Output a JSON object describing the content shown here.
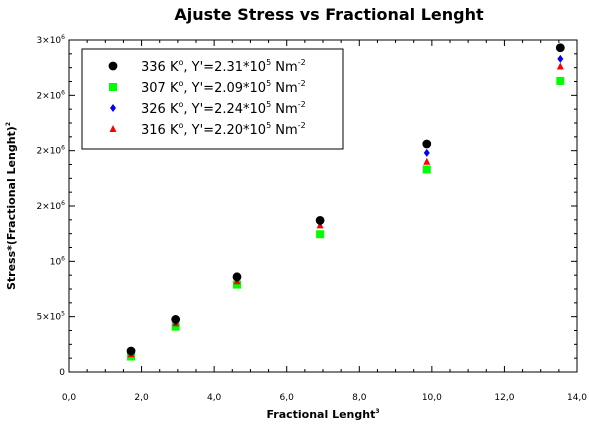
{
  "chart_data": {
    "type": "scatter",
    "title": "Ajuste Stress vs Fractional Lenght",
    "xlabel": "Fractional Lenght",
    "xlabel_sup": "3",
    "ylabel": "Stress*(Fractional Lenght)",
    "ylabel_sup": "2",
    "xlim": [
      0,
      14
    ],
    "ylim": [
      0,
      3000000
    ],
    "x_ticks": [
      "0,0",
      "2,0",
      "4,0",
      "6,0",
      "8,0",
      "10,0",
      "12,0",
      "14,0"
    ],
    "y_ticks": [
      {
        "base": "0",
        "exp": ""
      },
      {
        "base": "5×10",
        "exp": "5"
      },
      {
        "base": "10",
        "exp": "6"
      },
      {
        "base": "2×10",
        "exp": "6"
      },
      {
        "base": "2×10",
        "exp": "6"
      },
      {
        "base": "2×10",
        "exp": "6"
      },
      {
        "base": "3×10",
        "exp": "6"
      }
    ],
    "grid": false,
    "legend_position": "top-left",
    "series": [
      {
        "legend": {
          "a": "336 K",
          "b": "o",
          "c": ", Y'=2.31*10",
          "d": "5",
          "e": " Nm",
          "f": "-2"
        },
        "color": "#000000",
        "marker": "circle",
        "x": [
          1.71,
          2.94,
          4.63,
          6.92,
          9.86,
          13.54
        ],
        "y": [
          190000,
          475000,
          860000,
          1370000,
          2060000,
          2930000
        ]
      },
      {
        "legend": {
          "a": "307 K",
          "b": "o",
          "c": ", Y'=2.09*10",
          "d": "5",
          "e": " Nm",
          "f": "-2"
        },
        "color": "#00ff00",
        "marker": "square",
        "x": [
          1.71,
          2.94,
          4.63,
          6.92,
          9.86,
          13.54
        ],
        "y": [
          140000,
          410000,
          790000,
          1245000,
          1830000,
          2630000
        ]
      },
      {
        "legend": {
          "a": "326 K",
          "b": "o",
          "c": ", Y'=2.24*10",
          "d": "5",
          "e": " Nm",
          "f": "-2"
        },
        "color": "#0000ff",
        "marker": "diamond",
        "x": [
          1.71,
          2.94,
          4.63,
          6.92,
          9.86,
          13.54
        ],
        "y": [
          180000,
          455000,
          845000,
          1360000,
          1980000,
          2830000
        ]
      },
      {
        "legend": {
          "a": "316 K",
          "b": "o",
          "c": ", Y'=2.20*10",
          "d": "5",
          "e": " Nm",
          "f": "-2"
        },
        "color": "#ff0000",
        "marker": "triangle",
        "x": [
          1.71,
          2.94,
          4.63,
          6.92,
          9.86,
          13.54
        ],
        "y": [
          160000,
          440000,
          820000,
          1325000,
          1900000,
          2760000
        ]
      }
    ]
  }
}
